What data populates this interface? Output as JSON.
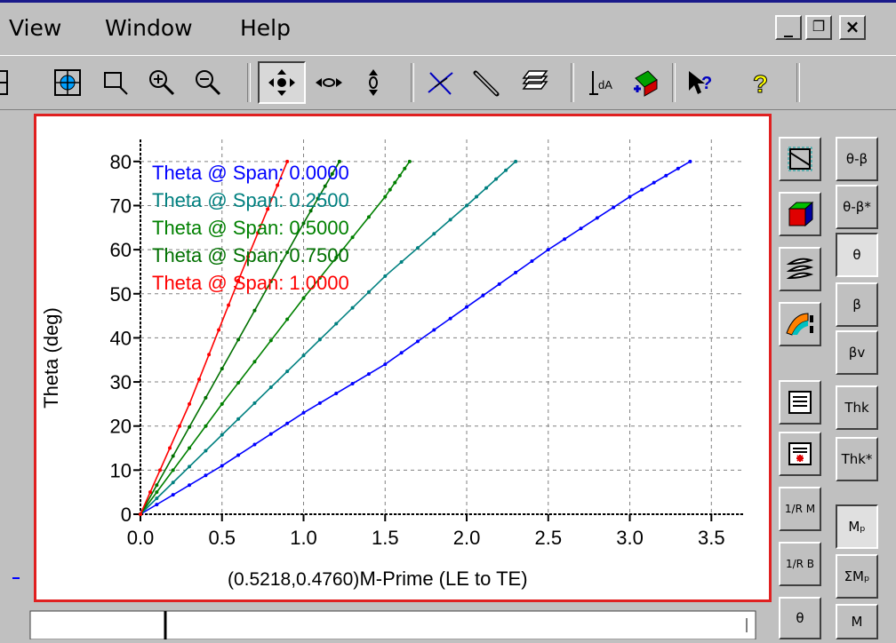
{
  "menu": {
    "items": [
      "View",
      "Window",
      "Help"
    ]
  },
  "window_buttons": {
    "minimize": "_",
    "restore": "❐",
    "close": "×"
  },
  "toolbar": {
    "icons": [
      "fit-view-icon",
      "zoom-box-icon",
      "zoom-in-icon",
      "zoom-out-icon",
      "pan-icon",
      "pan-horizontal-icon",
      "pan-vertical-icon",
      "intersect-icon",
      "measure-icon",
      "layers-icon",
      "label-icon",
      "transform-icon",
      "context-help-icon",
      "help-icon"
    ]
  },
  "status": {
    "coordinates": "(0.5218,0.4760)"
  },
  "chart_data": {
    "type": "line",
    "xlabel": "M-Prime (LE to TE)",
    "ylabel": "Theta (deg)",
    "xlim": [
      0,
      3.7
    ],
    "ylim": [
      0,
      85
    ],
    "xticks": [
      "0.0",
      "0.5",
      "1.0",
      "1.5",
      "2.0",
      "2.5",
      "3.0",
      "3.5"
    ],
    "yticks": [
      "0",
      "10",
      "20",
      "30",
      "40",
      "50",
      "60",
      "70",
      "80"
    ],
    "grid": true,
    "legend_position": "top-left",
    "series": [
      {
        "name": "Theta @ Span: 0.0000",
        "color": "#0000ff",
        "points": [
          [
            0,
            0
          ],
          [
            0.5,
            11
          ],
          [
            1.0,
            23
          ],
          [
            1.5,
            34
          ],
          [
            2.0,
            47
          ],
          [
            2.5,
            60
          ],
          [
            3.0,
            72
          ],
          [
            3.37,
            80
          ]
        ]
      },
      {
        "name": "Theta @ Span: 0.2500",
        "color": "#008080",
        "points": [
          [
            0,
            0
          ],
          [
            0.5,
            18
          ],
          [
            1.0,
            36
          ],
          [
            1.5,
            54
          ],
          [
            2.0,
            70
          ],
          [
            2.3,
            80
          ]
        ]
      },
      {
        "name": "Theta @ Span: 0.5000",
        "color": "#008000",
        "points": [
          [
            0,
            0
          ],
          [
            0.5,
            25
          ],
          [
            1.0,
            49
          ],
          [
            1.5,
            72
          ],
          [
            1.65,
            80
          ]
        ]
      },
      {
        "name": "Theta @ Span: 0.7500",
        "color": "#007000",
        "points": [
          [
            0,
            0
          ],
          [
            0.5,
            33
          ],
          [
            1.0,
            66
          ],
          [
            1.22,
            80
          ]
        ]
      },
      {
        "name": "Theta @ Span: 1.0000",
        "color": "#ff0000",
        "points": [
          [
            0,
            0
          ],
          [
            0.3,
            25
          ],
          [
            0.6,
            53
          ],
          [
            0.9,
            80
          ]
        ]
      }
    ]
  },
  "side_panel": {
    "left_icons": [
      "mesh-view-icon",
      "solid-block-icon",
      "blade-stack-icon",
      "contour-color-icon",
      "list-view-icon",
      "list-marker-icon"
    ],
    "left_labels": [
      "1/R M",
      "1/R B",
      "θ"
    ],
    "right_labels": [
      "θ-β",
      "θ-β*",
      "θ",
      "β",
      "βv",
      "Thk",
      "Thk*",
      "Mₚ",
      "ΣMₚ",
      "M"
    ]
  }
}
